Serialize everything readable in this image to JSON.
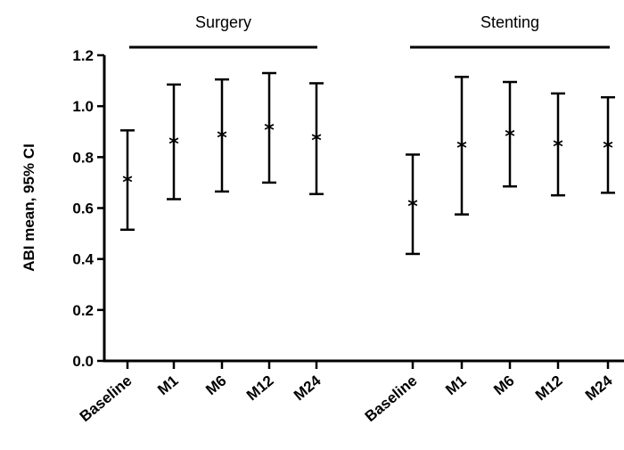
{
  "chart_data": {
    "type": "scatter",
    "ylabel": "ABI mean, 95% CI",
    "ylim": [
      0,
      1.2
    ],
    "yticks": [
      "0.0",
      "0.2",
      "0.4",
      "0.6",
      "0.8",
      "1.0",
      "1.2"
    ],
    "marker": "*",
    "groups": [
      {
        "name": "Surgery",
        "categories": [
          "Baseline",
          "M1",
          "M6",
          "M12",
          "M24"
        ],
        "mean": [
          0.71,
          0.86,
          0.885,
          0.915,
          0.875
        ],
        "ci_low": [
          0.515,
          0.635,
          0.665,
          0.7,
          0.655
        ],
        "ci_high": [
          0.905,
          1.085,
          1.105,
          1.13,
          1.09
        ]
      },
      {
        "name": "Stenting",
        "categories": [
          "Baseline",
          "M1",
          "M6",
          "M12",
          "M24"
        ],
        "mean": [
          0.615,
          0.845,
          0.89,
          0.85,
          0.845
        ],
        "ci_low": [
          0.42,
          0.575,
          0.685,
          0.65,
          0.66
        ],
        "ci_high": [
          0.81,
          1.115,
          1.095,
          1.05,
          1.035
        ]
      }
    ]
  }
}
